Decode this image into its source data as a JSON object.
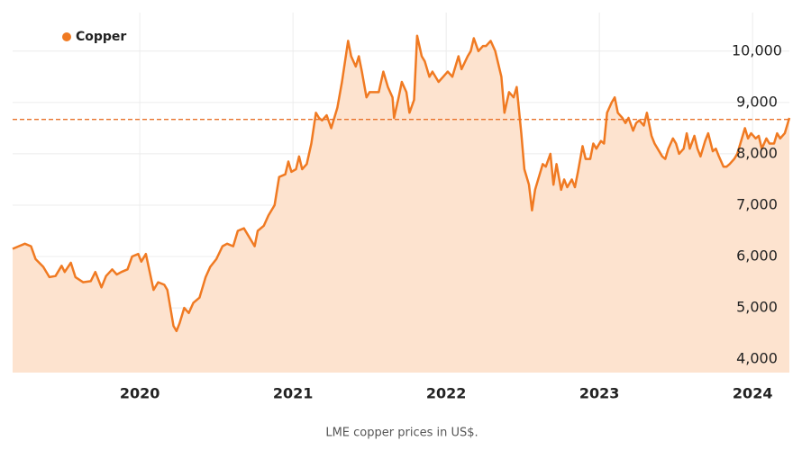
{
  "chart_data": {
    "type": "area",
    "caption": "LME copper prices in US$.",
    "legend": "top-left",
    "grid": true,
    "fill_color": "#fde3cf",
    "reference_line": 8670,
    "reference_color": "#e8722a",
    "xlim": [
      2019.17,
      2024.24
    ],
    "xticks": [
      2020,
      2021,
      2022,
      2023,
      2024
    ],
    "ylim": [
      3740,
      10750
    ],
    "yticks": [
      {
        "value": 4000,
        "label": "4,000"
      },
      {
        "value": 5000,
        "label": "5,000"
      },
      {
        "value": 6000,
        "label": "6,000"
      },
      {
        "value": 7000,
        "label": "7,000"
      },
      {
        "value": 8000,
        "label": "8,000"
      },
      {
        "value": 9000,
        "label": "9,000"
      },
      {
        "value": 10000,
        "label": "10,000"
      }
    ],
    "x": [
      2019.17,
      2019.21,
      2019.25,
      2019.29,
      2019.32,
      2019.37,
      2019.41,
      2019.45,
      2019.49,
      2019.51,
      2019.55,
      2019.58,
      2019.63,
      2019.68,
      2019.71,
      2019.75,
      2019.78,
      2019.82,
      2019.85,
      2019.88,
      2019.92,
      2019.95,
      2019.99,
      2020.01,
      2020.04,
      2020.09,
      2020.12,
      2020.16,
      2020.18,
      2020.22,
      2020.24,
      2020.26,
      2020.29,
      2020.32,
      2020.35,
      2020.39,
      2020.43,
      2020.46,
      2020.5,
      2020.54,
      2020.57,
      2020.61,
      2020.64,
      2020.68,
      2020.71,
      2020.75,
      2020.77,
      2020.81,
      2020.84,
      2020.88,
      2020.91,
      2020.95,
      2020.97,
      2020.99,
      2021.02,
      2021.04,
      2021.06,
      2021.09,
      2021.12,
      2021.15,
      2021.17,
      2021.19,
      2021.22,
      2021.25,
      2021.29,
      2021.32,
      2021.36,
      2021.38,
      2021.41,
      2021.43,
      2021.45,
      2021.48,
      2021.5,
      2021.53,
      2021.56,
      2021.59,
      2021.62,
      2021.65,
      2021.66,
      2021.69,
      2021.71,
      2021.74,
      2021.76,
      2021.79,
      2021.81,
      2021.84,
      2021.86,
      2021.89,
      2021.91,
      2021.95,
      2021.98,
      2022.01,
      2022.04,
      2022.08,
      2022.1,
      2022.14,
      2022.16,
      2022.18,
      2022.21,
      2022.24,
      2022.26,
      2022.29,
      2022.32,
      2022.36,
      2022.38,
      2022.41,
      2022.44,
      2022.46,
      2022.49,
      2022.51,
      2022.54,
      2022.56,
      2022.58,
      2022.61,
      2022.63,
      2022.65,
      2022.68,
      2022.7,
      2022.72,
      2022.75,
      2022.77,
      2022.79,
      2022.82,
      2022.84,
      2022.86,
      2022.89,
      2022.91,
      2022.94,
      2022.96,
      2022.98,
      2023.01,
      2023.03,
      2023.05,
      2023.08,
      2023.1,
      2023.12,
      2023.15,
      2023.17,
      2023.19,
      2023.22,
      2023.24,
      2023.26,
      2023.29,
      2023.31,
      2023.34,
      2023.36,
      2023.38,
      2023.41,
      2023.43,
      2023.45,
      2023.48,
      2023.5,
      2023.52,
      2023.55,
      2023.57,
      2023.59,
      2023.62,
      2023.64,
      2023.66,
      2023.69,
      2023.71,
      2023.74,
      2023.76,
      2023.78,
      2023.81,
      2023.83,
      2023.85,
      2023.88,
      2023.9,
      2023.92,
      2023.95,
      2023.97,
      2023.99,
      2024.02,
      2024.04,
      2024.06,
      2024.09,
      2024.11,
      2024.14,
      2024.16,
      2024.18,
      2024.21,
      2024.23,
      2024.24
    ],
    "series": [
      {
        "name": "Copper",
        "color": "#f07a22",
        "values": [
          6150,
          6200,
          6250,
          6200,
          5950,
          5800,
          5600,
          5620,
          5820,
          5700,
          5880,
          5600,
          5500,
          5520,
          5700,
          5400,
          5620,
          5750,
          5650,
          5700,
          5750,
          6000,
          6050,
          5900,
          6050,
          5350,
          5500,
          5450,
          5350,
          4650,
          4550,
          4700,
          5000,
          4900,
          5100,
          5200,
          5600,
          5800,
          5950,
          6200,
          6250,
          6200,
          6500,
          6550,
          6400,
          6200,
          6500,
          6600,
          6800,
          7000,
          7550,
          7600,
          7850,
          7650,
          7700,
          7950,
          7700,
          7800,
          8200,
          8800,
          8700,
          8650,
          8750,
          8500,
          8900,
          9400,
          10200,
          9900,
          9700,
          9900,
          9600,
          9100,
          9200,
          9200,
          9200,
          9600,
          9300,
          9100,
          8700,
          9100,
          9400,
          9200,
          8800,
          9050,
          10300,
          9900,
          9800,
          9500,
          9600,
          9400,
          9500,
          9600,
          9500,
          9900,
          9650,
          9900,
          10000,
          10250,
          10000,
          10100,
          10100,
          10200,
          10000,
          9500,
          8800,
          9200,
          9100,
          9300,
          8400,
          7700,
          7400,
          6900,
          7300,
          7600,
          7800,
          7750,
          8000,
          7400,
          7800,
          7300,
          7500,
          7350,
          7500,
          7350,
          7650,
          8150,
          7900,
          7900,
          8200,
          8100,
          8250,
          8200,
          8800,
          9000,
          9100,
          8800,
          8700,
          8600,
          8700,
          8450,
          8600,
          8650,
          8550,
          8800,
          8350,
          8200,
          8100,
          7950,
          7900,
          8100,
          8300,
          8200,
          8000,
          8100,
          8400,
          8100,
          8350,
          8100,
          7950,
          8250,
          8400,
          8050,
          8100,
          7950,
          7750,
          7750,
          7800,
          7900,
          8000,
          8200,
          8500,
          8300,
          8400,
          8300,
          8350,
          8100,
          8300,
          8200,
          8200,
          8400,
          8300,
          8400,
          8600,
          8700
        ]
      }
    ]
  }
}
